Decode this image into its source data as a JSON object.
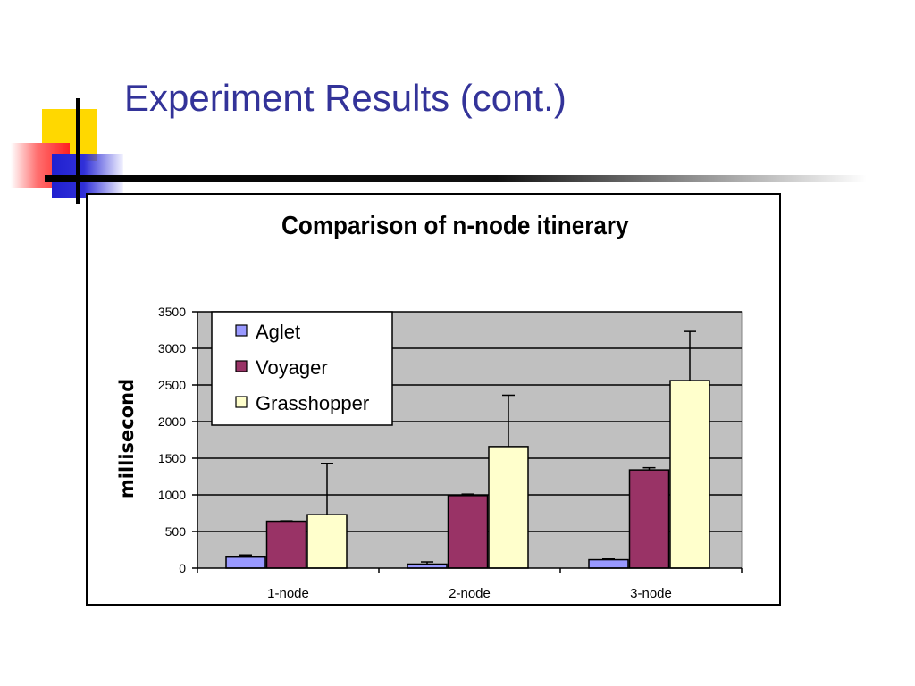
{
  "slide": {
    "title": "Experiment Results (cont.)"
  },
  "colors": {
    "title": "#333399",
    "plot_area": "#c0c0c0",
    "Aglet": "#9999ff",
    "Voyager": "#993366",
    "Grasshopper": "#ffffcc"
  },
  "chart_data": {
    "type": "bar",
    "title": "Comparison of n-node itinerary",
    "xlabel": "",
    "ylabel": "millisecond",
    "categories": [
      "1-node",
      "2-node",
      "3-node"
    ],
    "ylim": [
      0,
      3500
    ],
    "yticks": [
      "0",
      "500",
      "1000",
      "1500",
      "2000",
      "2500",
      "3000",
      "3500"
    ],
    "grid": true,
    "legend_position": "top-left",
    "series": [
      {
        "name": "Aglet",
        "values": [
          150,
          55,
          115
        ],
        "error": [
          30,
          30,
          10
        ]
      },
      {
        "name": "Voyager",
        "values": [
          640,
          990,
          1340
        ],
        "error": [
          5,
          20,
          30
        ]
      },
      {
        "name": "Grasshopper",
        "values": [
          730,
          1660,
          2560
        ],
        "error": [
          700,
          700,
          670
        ]
      }
    ]
  }
}
